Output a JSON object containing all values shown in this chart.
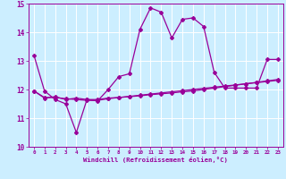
{
  "xlabel": "Windchill (Refroidissement éolien,°C)",
  "bg_color": "#cceeff",
  "line_color": "#990099",
  "xlim": [
    -0.5,
    23.5
  ],
  "ylim": [
    10,
    15
  ],
  "yticks": [
    10,
    11,
    12,
    13,
    14,
    15
  ],
  "xticks": [
    0,
    1,
    2,
    3,
    4,
    5,
    6,
    7,
    8,
    9,
    10,
    11,
    12,
    13,
    14,
    15,
    16,
    17,
    18,
    19,
    20,
    21,
    22,
    23
  ],
  "line1_x": [
    0,
    1,
    2,
    3,
    4,
    5,
    6,
    7,
    8,
    9,
    10,
    11,
    12,
    13,
    14,
    15,
    16,
    17,
    18,
    19,
    20,
    21,
    22,
    23
  ],
  "line1_y": [
    13.2,
    11.95,
    11.65,
    11.5,
    10.5,
    11.65,
    11.6,
    12.0,
    12.45,
    12.55,
    14.1,
    14.85,
    14.7,
    13.8,
    14.45,
    14.5,
    14.2,
    12.6,
    12.05,
    12.05,
    12.05,
    12.05,
    13.05,
    13.05
  ],
  "line2_x": [
    0,
    1,
    2,
    3,
    4,
    5,
    6,
    7,
    8,
    9,
    10,
    11,
    12,
    13,
    14,
    15,
    16,
    17,
    18,
    19,
    20,
    21,
    22,
    23
  ],
  "line2_y": [
    11.95,
    11.7,
    11.75,
    11.65,
    11.7,
    11.65,
    11.65,
    11.7,
    11.72,
    11.75,
    11.78,
    11.82,
    11.85,
    11.88,
    11.92,
    11.95,
    12.0,
    12.05,
    12.1,
    12.15,
    12.2,
    12.25,
    12.3,
    12.35
  ],
  "line3_x": [
    0,
    1,
    2,
    3,
    4,
    5,
    6,
    7,
    8,
    9,
    10,
    11,
    12,
    13,
    14,
    15,
    16,
    17,
    18,
    19,
    20,
    21,
    22,
    23
  ],
  "line3_y": [
    11.95,
    11.72,
    11.72,
    11.68,
    11.65,
    11.62,
    11.62,
    11.68,
    11.72,
    11.76,
    11.8,
    11.84,
    11.88,
    11.92,
    11.96,
    12.0,
    12.04,
    12.08,
    12.12,
    12.16,
    12.2,
    12.24,
    12.28,
    12.32
  ]
}
